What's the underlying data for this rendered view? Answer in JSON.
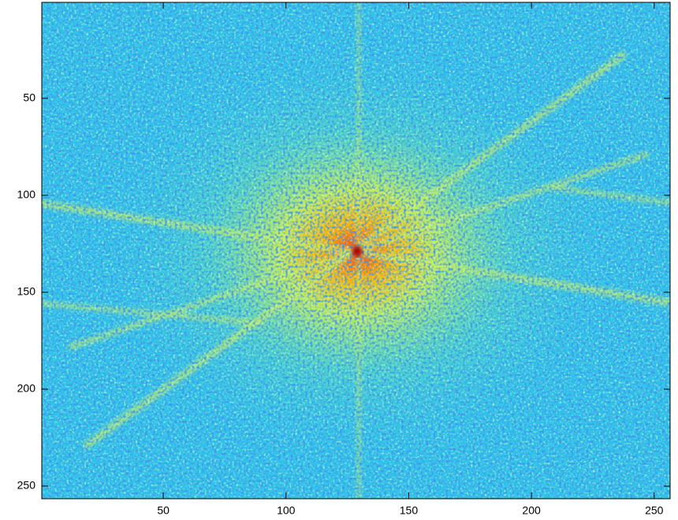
{
  "chart_data": {
    "type": "image",
    "xlim": [
      0.5,
      256.5
    ],
    "ylim": [
      0.5,
      256.5
    ],
    "ydir": "reverse",
    "xticks": [
      50,
      100,
      150,
      200,
      250
    ],
    "yticks": [
      50,
      100,
      150,
      200,
      250
    ]
  }
}
